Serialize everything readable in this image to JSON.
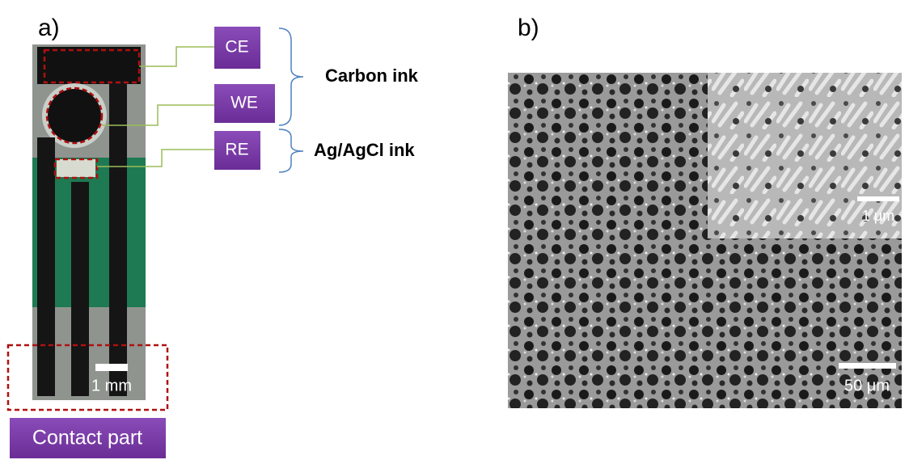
{
  "panel_a": {
    "label": "a)",
    "electrodes": [
      {
        "label": "CE"
      },
      {
        "label": "WE"
      },
      {
        "label": "RE"
      }
    ],
    "groups": [
      {
        "label": "Carbon ink"
      },
      {
        "label": "Ag/AgCl ink"
      }
    ],
    "scale_bar": "1 mm",
    "contact_label": "Contact part"
  },
  "panel_b": {
    "label": "b)",
    "inset_scale_bar": "1 μm",
    "scale_bar": "50 μm"
  }
}
